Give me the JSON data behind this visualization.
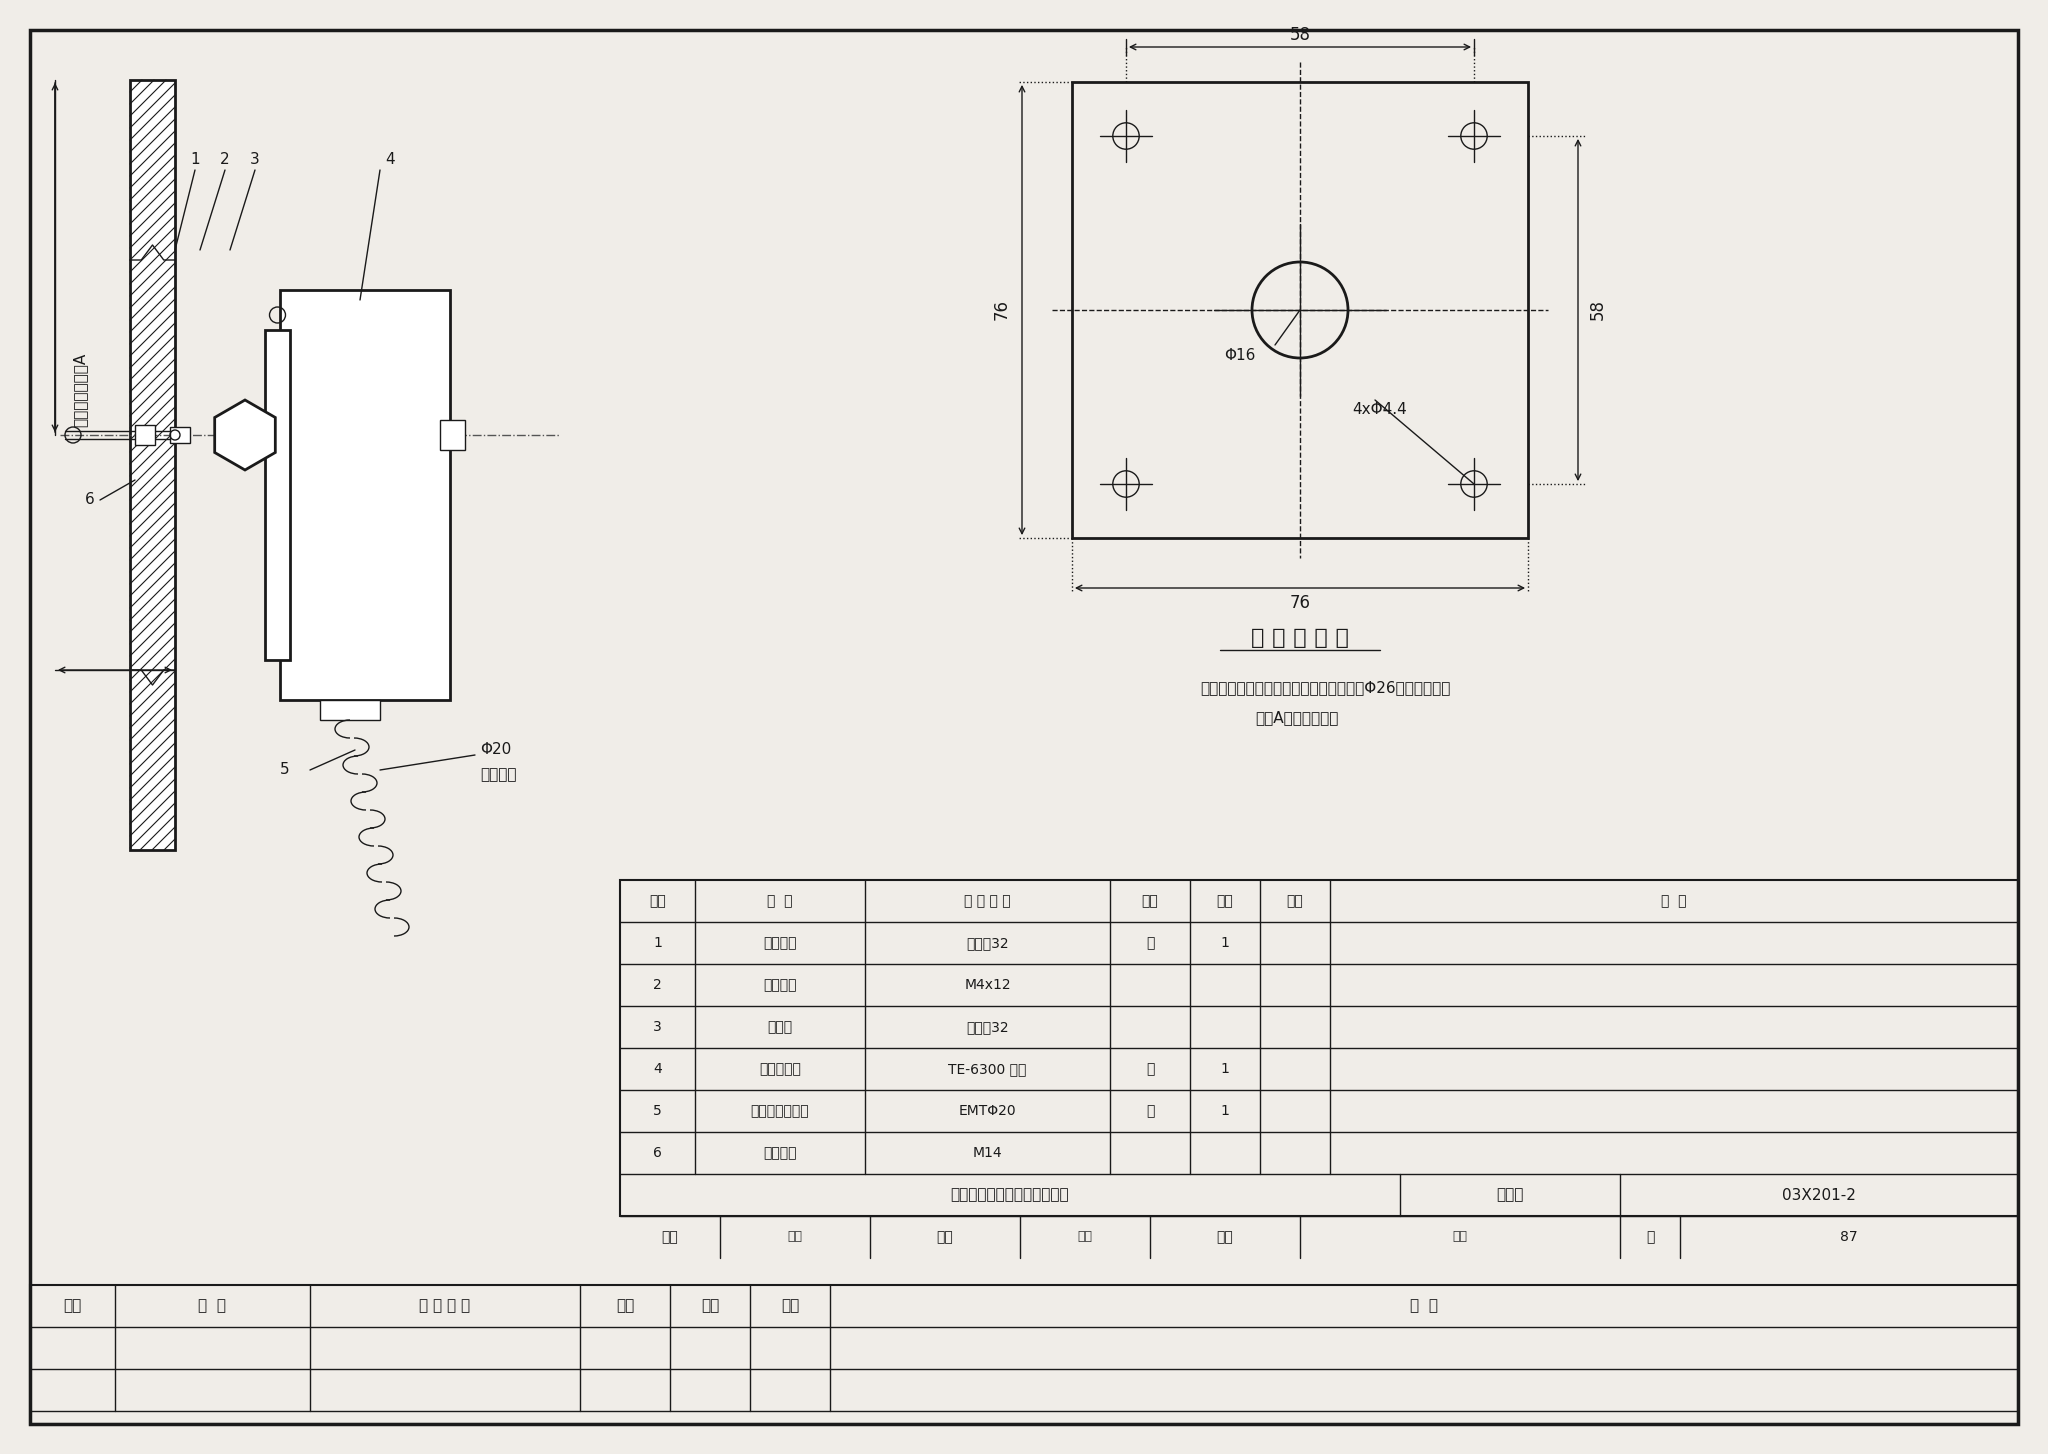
{
  "bg_color": "#f0ede8",
  "line_color": "#1a1a1a",
  "title": "风管温度（湿度）传感器安装",
  "figure_set": "03X201-2",
  "page": "87",
  "plate_title": "连 接 板 大 样",
  "note_line1": "注：风管管壁上温度传感器插入孔直径为Φ26．插入风管内",
  "note_line2": "长度A见工程设计．",
  "table_headers": [
    "序号",
    "名 称",
    "型 号 规 格",
    "单位",
    "数量",
    "页次",
    "备 注"
  ],
  "table_rows": [
    [
      "1",
      "密封胶垫",
      "橡胶厒32",
      "块",
      "1",
      "",
      ""
    ],
    [
      "2",
      "自攻螺丝",
      "M4x12",
      "",
      "",
      "",
      ""
    ],
    [
      "3",
      "连接板",
      "钉板厒32",
      "",
      "",
      "",
      ""
    ],
    [
      "4",
      "温度传感器",
      "TE-6300 系列",
      "套",
      "1",
      "",
      ""
    ],
    [
      "5",
      "金属软管连接头",
      "EMTΦ20",
      "个",
      "1",
      "",
      ""
    ],
    [
      "6",
      "锁紧螺母",
      "M14",
      "",
      "",
      "",
      ""
    ]
  ],
  "bottom_row": [
    "风管温度（湿度）传感器安装",
    "图集号",
    "03X201-2"
  ],
  "bottom_row2": [
    "审核",
    "校对",
    "设计",
    "页",
    "87"
  ]
}
